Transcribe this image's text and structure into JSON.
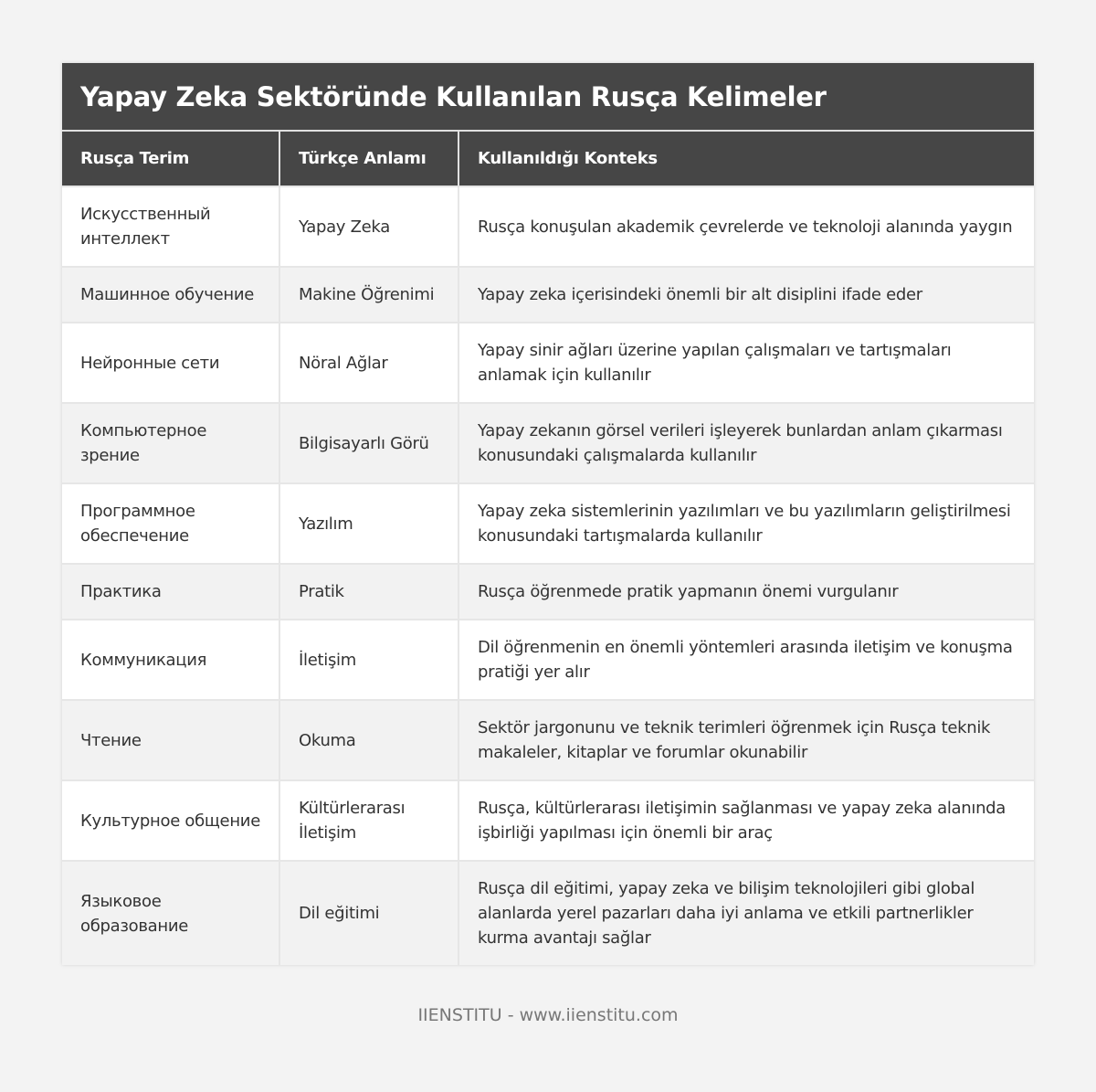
{
  "title": "Yapay Zeka Sektöründe Kullanılan Rusça Kelimeler",
  "headers": [
    "Rusça Terim",
    "Türkçe Anlamı",
    "Kullanıldığı Konteks"
  ],
  "rows": [
    [
      "Искусственный интеллект",
      "Yapay Zeka",
      "Rusça konuşulan akademik çevrelerde ve teknoloji alanında yaygın"
    ],
    [
      "Машинное обучение",
      "Makine Öğrenimi",
      "Yapay zeka içerisindeki önemli bir alt disiplini ifade eder"
    ],
    [
      "Нейронные сети",
      "Nöral Ağlar",
      "Yapay sinir ağları üzerine yapılan çalışmaları ve tartışmaları anlamak için kullanılır"
    ],
    [
      "Компьютерное зрение",
      "Bilgisayarlı Görü",
      "Yapay zekanın görsel verileri işleyerek bunlardan anlam çıkarması konusundaki çalışmalarda kullanılır"
    ],
    [
      "Программное обеспечение",
      "Yazılım",
      "Yapay zeka sistemlerinin yazılımları ve bu yazılımların geliştirilmesi konusundaki tartışmalarda kullanılır"
    ],
    [
      "Практика",
      "Pratik",
      "Rusça öğrenmede pratik yapmanın önemi vurgulanır"
    ],
    [
      "Коммуникация",
      "İletişim",
      "Dil öğrenmenin en önemli yöntemleri arasında iletişim ve konuşma pratiği yer alır"
    ],
    [
      "Чтение",
      "Okuma",
      "Sektör jargonunu ve teknik terimleri öğrenmek için Rusça teknik makaleler, kitaplar ve forumlar okunabilir"
    ],
    [
      "Культурное общение",
      "Kültürlerarası İletişim",
      "Rusça, kültürlerarası iletişimin sağlanması ve yapay zeka alanında işbirliği yapılması için önemli bir araç"
    ],
    [
      "Языковое образование",
      "Dil eğitimi",
      "Rusça dil eğitimi, yapay zeka ve bilişim teknolojileri gibi global alanlarda yerel pazarları daha iyi anlama ve etkili partnerlikler kurma avantajı sağlar"
    ]
  ],
  "footer": "IIENSTITU - www.iienstitu.com",
  "colors": {
    "header_bg": "#464646",
    "alt_row": "#f2f2f2",
    "page_bg": "#f3f3f3"
  }
}
